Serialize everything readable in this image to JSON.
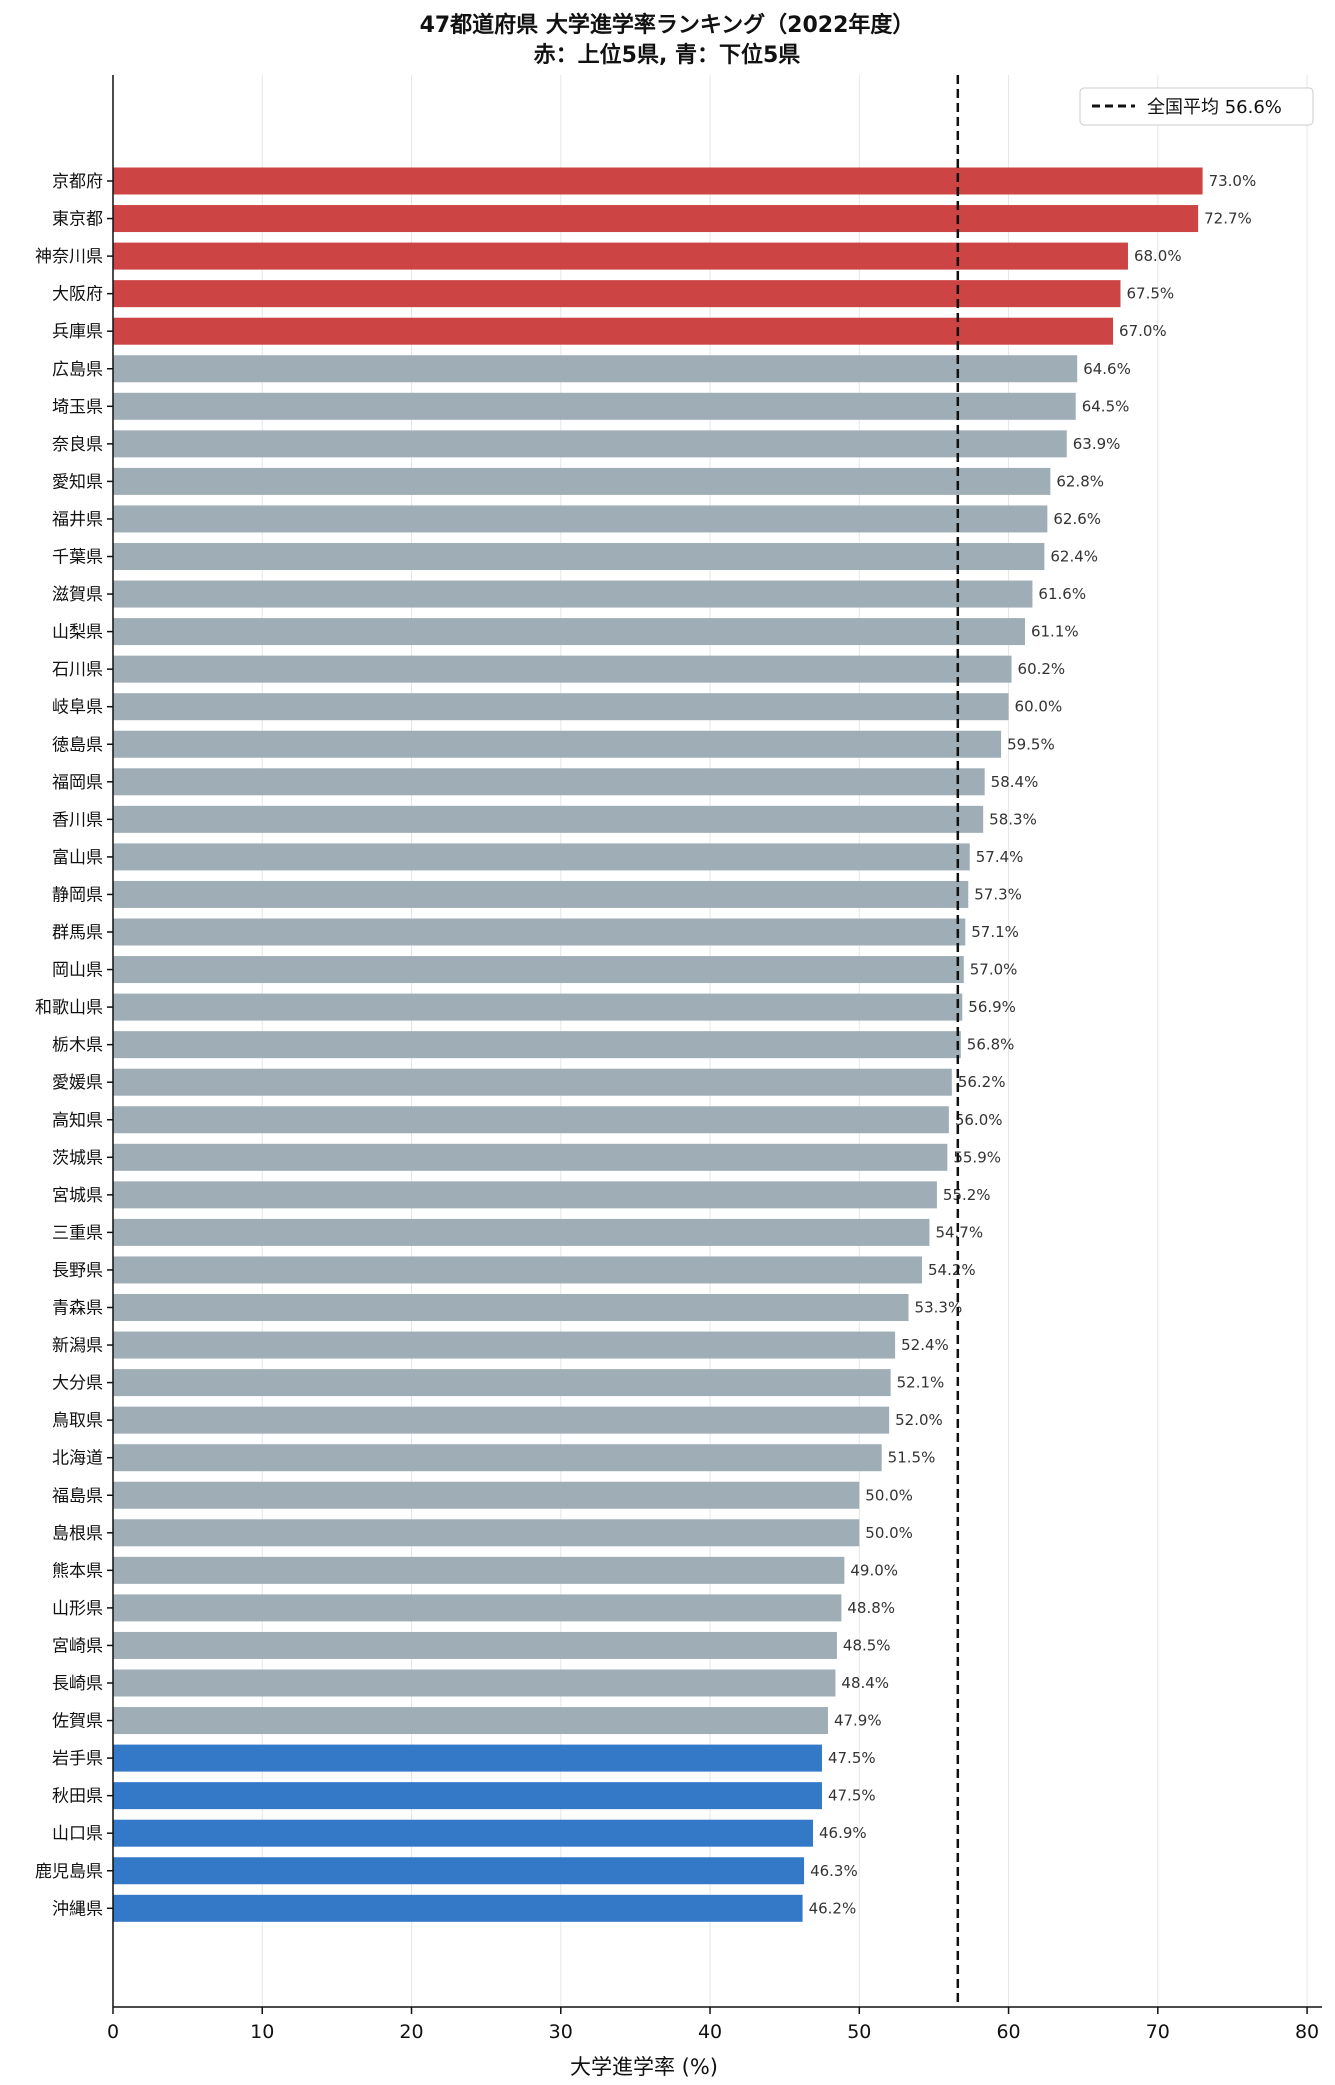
{
  "chart_data": {
    "type": "bar",
    "orientation": "horizontal",
    "title": "47都道府県 大学進学率ランキング（2022年度）",
    "subtitle": "赤：上位5県, 青：下位5県",
    "xlabel": "大学進学率 (%)",
    "ylabel": "",
    "xlim": [
      0,
      81
    ],
    "xticks": [
      0,
      10,
      20,
      30,
      40,
      50,
      60,
      70,
      80
    ],
    "grid": "vertical",
    "legend": {
      "position": "top-right",
      "label": "全国平均 56.6%",
      "style": "dashed"
    },
    "reference_line": {
      "value": 56.6
    },
    "value_label_suffix": "%",
    "colors": {
      "top": "#cc4444",
      "bottom": "#3478c8",
      "middle": "#9eadb6",
      "reference": "#111111",
      "grid": "#e6e6e6"
    },
    "categories": [
      "京都府",
      "東京都",
      "神奈川県",
      "大阪府",
      "兵庫県",
      "広島県",
      "埼玉県",
      "奈良県",
      "愛知県",
      "福井県",
      "千葉県",
      "滋賀県",
      "山梨県",
      "石川県",
      "岐阜県",
      "徳島県",
      "福岡県",
      "香川県",
      "富山県",
      "静岡県",
      "群馬県",
      "岡山県",
      "和歌山県",
      "栃木県",
      "愛媛県",
      "高知県",
      "茨城県",
      "宮城県",
      "三重県",
      "長野県",
      "青森県",
      "新潟県",
      "大分県",
      "鳥取県",
      "北海道",
      "福島県",
      "島根県",
      "熊本県",
      "山形県",
      "宮崎県",
      "長崎県",
      "佐賀県",
      "岩手県",
      "秋田県",
      "山口県",
      "鹿児島県",
      "沖縄県"
    ],
    "values": [
      73.0,
      72.7,
      68.0,
      67.5,
      67.0,
      64.6,
      64.5,
      63.9,
      62.8,
      62.6,
      62.4,
      61.6,
      61.1,
      60.2,
      60.0,
      59.5,
      58.4,
      58.3,
      57.4,
      57.3,
      57.1,
      57.0,
      56.9,
      56.8,
      56.2,
      56.0,
      55.9,
      55.2,
      54.7,
      54.2,
      53.3,
      52.4,
      52.1,
      52.0,
      51.5,
      50.0,
      50.0,
      49.0,
      48.8,
      48.5,
      48.4,
      47.9,
      47.5,
      47.5,
      46.9,
      46.3,
      46.2
    ],
    "groups": [
      "top",
      "top",
      "top",
      "top",
      "top",
      "middle",
      "middle",
      "middle",
      "middle",
      "middle",
      "middle",
      "middle",
      "middle",
      "middle",
      "middle",
      "middle",
      "middle",
      "middle",
      "middle",
      "middle",
      "middle",
      "middle",
      "middle",
      "middle",
      "middle",
      "middle",
      "middle",
      "middle",
      "middle",
      "middle",
      "middle",
      "middle",
      "middle",
      "middle",
      "middle",
      "middle",
      "middle",
      "middle",
      "middle",
      "middle",
      "middle",
      "middle",
      "bottom",
      "bottom",
      "bottom",
      "bottom",
      "bottom"
    ]
  }
}
